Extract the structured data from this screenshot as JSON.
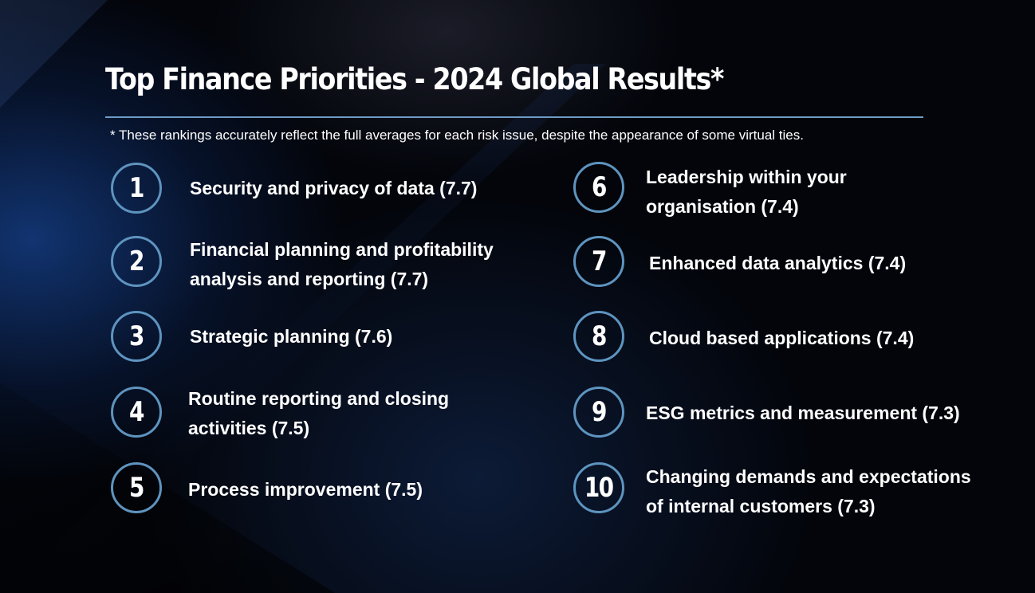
{
  "title": "Top Finance Priorities - 2024 Global Results*",
  "footnote": "* These rankings accurately reflect the full averages for each risk issue, despite the appearance of some virtual ties.",
  "priorities": [
    {
      "rank": "1",
      "line1": "Security and privacy of data (7.7)",
      "line2": ""
    },
    {
      "rank": "2",
      "line1": "Financial planning and profitability",
      "line2": "analysis and reporting (7.7)"
    },
    {
      "rank": "3",
      "line1": "Strategic planning (7.6)",
      "line2": ""
    },
    {
      "rank": "4",
      "line1": "Routine reporting and closing",
      "line2": "activities (7.5)"
    },
    {
      "rank": "5",
      "line1": "Process improvement (7.5)",
      "line2": ""
    },
    {
      "rank": "6",
      "line1": "Leadership within your",
      "line2": "organisation (7.4)"
    },
    {
      "rank": "7",
      "line1": "Enhanced data analytics (7.4)",
      "line2": ""
    },
    {
      "rank": "8",
      "line1": "Cloud based applications (7.4)",
      "line2": ""
    },
    {
      "rank": "9",
      "line1": "ESG metrics and measurement (7.3)",
      "line2": ""
    },
    {
      "rank": "10",
      "line1": "Changing demands and expectations",
      "line2": "of internal customers (7.3)"
    }
  ],
  "colors": {
    "accent": "#5e94bf",
    "rule": "#6f9cc6",
    "text": "#ffffff",
    "background": "#03050b"
  }
}
